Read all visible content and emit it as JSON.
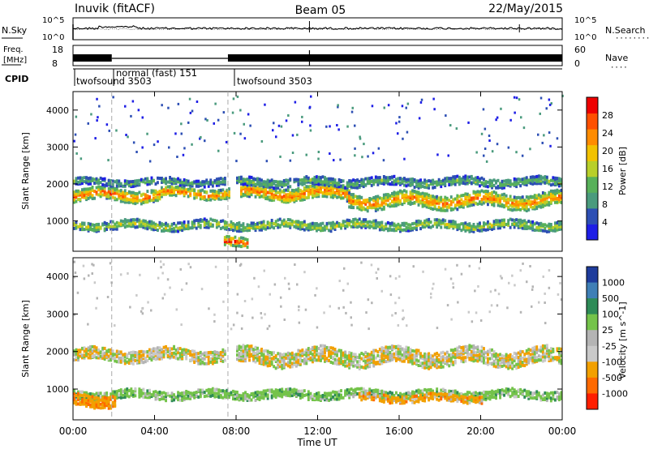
{
  "header": {
    "site": "Inuvik (fitACF)",
    "beam": "Beam 05",
    "date": "22/May/2015"
  },
  "noise_panel": {
    "left_label": "N.Sky",
    "right_label": "N.Search",
    "left_ticks": [
      "10^5",
      "10^0"
    ],
    "right_ticks": [
      "10^5",
      "10^0"
    ],
    "dots": "·········"
  },
  "freq_panel": {
    "left_label_line1": "Freq.",
    "left_label_line2": "[MHz]",
    "right_label": "Nave",
    "left_ticks": [
      "18",
      "8"
    ],
    "right_ticks": [
      "60",
      "0"
    ],
    "dots": "····"
  },
  "cpid": {
    "label": "CPID",
    "segments": [
      {
        "name": "twofsound 3503",
        "start": 0.0,
        "end": 1.9
      },
      {
        "name": "normal (fast) 151",
        "start": 1.9,
        "end": 7.6
      },
      {
        "name": "twofsound 3503",
        "start": 7.6,
        "end": 24.0
      }
    ]
  },
  "colors": {
    "power": [
      "#1e1ee6",
      "#2d4fb4",
      "#4a9b7d",
      "#58b15a",
      "#b8cf2a",
      "#f2c200",
      "#ff8c00",
      "#ff5000",
      "#ee0000"
    ],
    "velocity": [
      "#1e3c9c",
      "#3f7fb6",
      "#2e8b57",
      "#74c34a",
      "#b4b4b4",
      "#c9c9c9",
      "#f2a000",
      "#ff6a00",
      "#ff1e00"
    ]
  },
  "chart_data": [
    {
      "type": "heatmap",
      "quantity": "Power",
      "ylabel": "Slant Range [km]",
      "xlabel": "",
      "colorbar_label": "Power [dB]",
      "colorbar_ticks": [
        "4",
        "8",
        "12",
        "16",
        "20",
        "24",
        "28"
      ],
      "x_tick_labels": [],
      "y_tick_labels": [
        "1000",
        "2000",
        "3000",
        "4000"
      ],
      "xlim": [
        0,
        24
      ],
      "ylim": [
        180,
        4500
      ],
      "clim": [
        0,
        32
      ],
      "bands": [
        {
          "start": 0.0,
          "end": 4.2,
          "center": 1700,
          "width": 320,
          "peak": 27
        },
        {
          "start": 4.2,
          "end": 7.6,
          "center": 1750,
          "width": 260,
          "peak": 26
        },
        {
          "start": 8.2,
          "end": 13.5,
          "center": 1750,
          "width": 360,
          "peak": 26
        },
        {
          "start": 13.5,
          "end": 24.0,
          "center": 1550,
          "width": 380,
          "peak": 25
        },
        {
          "start": 0.0,
          "end": 7.4,
          "center": 2050,
          "width": 180,
          "peak": 12
        },
        {
          "start": 8.0,
          "end": 24.0,
          "center": 2050,
          "width": 220,
          "peak": 13
        },
        {
          "start": 0.0,
          "end": 24.0,
          "center": 880,
          "width": 230,
          "peak": 17
        },
        {
          "start": 7.3,
          "end": 8.5,
          "center": 400,
          "width": 250,
          "peak": 30
        }
      ]
    },
    {
      "type": "heatmap",
      "quantity": "Velocity",
      "ylabel": "Slant Range [km]",
      "xlabel": "Time UT",
      "colorbar_label": "Velocity [m s^-1]",
      "colorbar_ticks": [
        "1000",
        "500",
        "100",
        "25",
        "-25",
        "-100",
        "-500",
        "-1000"
      ],
      "x_tick_labels": [
        "00:00",
        "04:00",
        "08:00",
        "12:00",
        "16:00",
        "20:00",
        "00:00"
      ],
      "y_tick_labels": [
        "1000",
        "2000",
        "3000",
        "4000"
      ],
      "xlim": [
        0,
        24
      ],
      "ylim": [
        180,
        4500
      ],
      "clim": [
        -1000,
        1000
      ],
      "bands": [
        {
          "start": 0.0,
          "end": 7.4,
          "center": 1900,
          "width": 320,
          "value": 0
        },
        {
          "start": 8.0,
          "end": 24.0,
          "center": 1850,
          "width": 420,
          "value": 0
        },
        {
          "start": 0.0,
          "end": 24.0,
          "center": 850,
          "width": 220,
          "value": 60
        },
        {
          "start": 0.0,
          "end": 2.0,
          "center": 700,
          "width": 300,
          "value": -80
        },
        {
          "start": 14.0,
          "end": 20.0,
          "center": 750,
          "width": 200,
          "value": -60
        }
      ]
    }
  ]
}
